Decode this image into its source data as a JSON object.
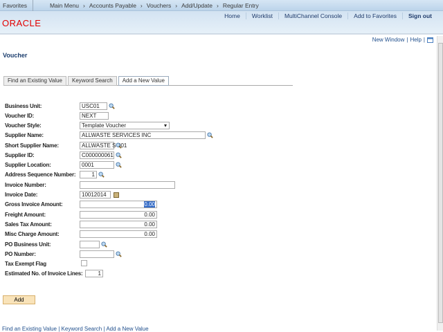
{
  "nav": {
    "favorites": "Favorites",
    "breadcrumbs": [
      "Main Menu",
      "Accounts Payable",
      "Vouchers",
      "Add/Update",
      "Regular Entry"
    ]
  },
  "header": {
    "links": [
      "Home",
      "Worklist",
      "MultiChannel Console",
      "Add to Favorites",
      "Sign out"
    ],
    "logo": "ORACLE"
  },
  "toplinks": {
    "new_window": "New Window",
    "help": "Help"
  },
  "page": {
    "title": "Voucher"
  },
  "tabs": [
    "Find an Existing Value",
    "Keyword Search",
    "Add a New Value"
  ],
  "form": {
    "business_unit": {
      "label": "Business Unit:",
      "value": "USC01"
    },
    "voucher_id": {
      "label": "Voucher ID:",
      "value": "NEXT"
    },
    "voucher_style": {
      "label": "Voucher Style:",
      "value": "Template Voucher"
    },
    "supplier_name": {
      "label": "Supplier Name:",
      "value": "ALLWASTE SERVICES INC"
    },
    "short_supplier_name": {
      "label": "Short Supplier Name:",
      "value": "ALLWASTE S-001"
    },
    "supplier_id": {
      "label": "Supplier ID:",
      "value": "C000000061"
    },
    "supplier_location": {
      "label": "Supplier Location:",
      "value": "0001"
    },
    "address_seq": {
      "label": "Address Sequence Number:",
      "value": "1"
    },
    "invoice_number": {
      "label": "Invoice Number:",
      "value": ""
    },
    "invoice_date": {
      "label": "Invoice Date:",
      "value": "10012014"
    },
    "gross_amount": {
      "label": "Gross Invoice Amount:",
      "value": "0.00"
    },
    "freight_amount": {
      "label": "Freight Amount:",
      "value": "0.00"
    },
    "sales_tax": {
      "label": "Sales Tax Amount:",
      "value": "0.00"
    },
    "misc_charge": {
      "label": "Misc Charge Amount:",
      "value": "0.00"
    },
    "po_bu": {
      "label": "PO Business Unit:",
      "value": ""
    },
    "po_number": {
      "label": "PO Number:",
      "value": ""
    },
    "tax_exempt": {
      "label": "Tax Exempt Flag",
      "checked": false
    },
    "est_lines": {
      "label": "Estimated No. of Invoice Lines:",
      "value": "1"
    }
  },
  "add_button": "Add",
  "bottom_links": [
    "Find an Existing Value",
    "Keyword Search",
    "Add a New Value"
  ]
}
